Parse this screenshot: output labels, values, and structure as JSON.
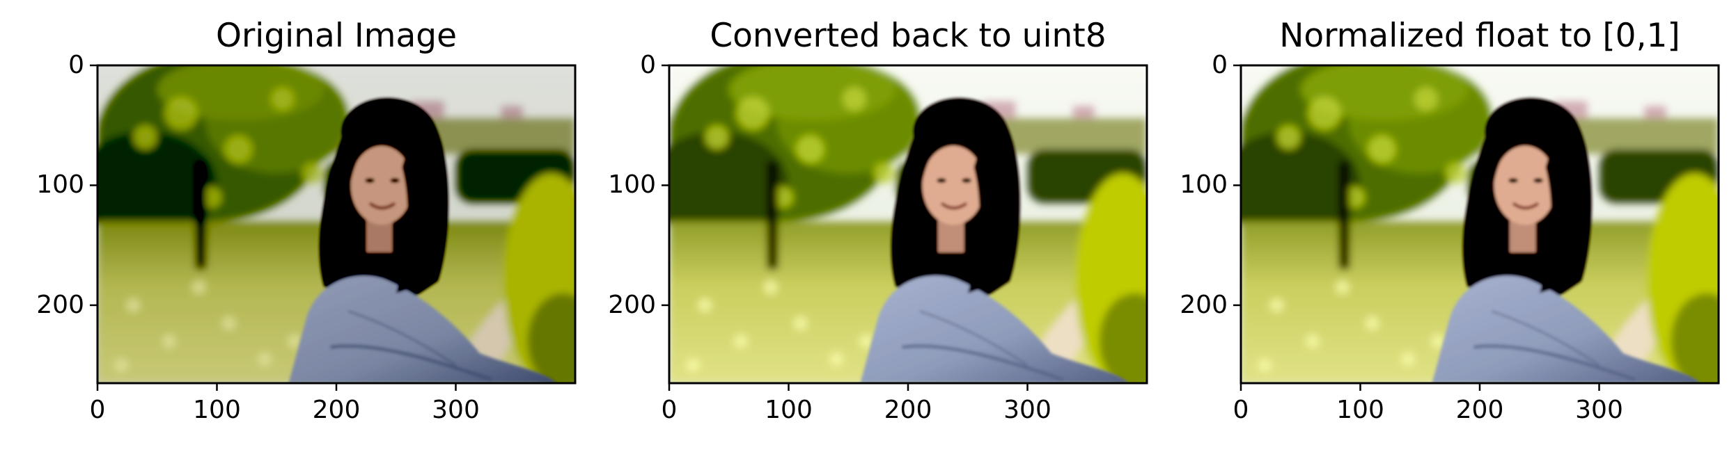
{
  "figure": {
    "panels": [
      {
        "id": "original",
        "title": "Original Image",
        "image": {
          "brightness": 0.82,
          "contrast": 1.12,
          "saturation": 1.0
        },
        "xticks": [
          "0",
          "100",
          "200",
          "300"
        ],
        "yticks": [
          "0",
          "100",
          "200"
        ],
        "xlim": [
          0,
          400
        ],
        "ylim": [
          265,
          0
        ]
      },
      {
        "id": "uint8",
        "title": "Converted back to uint8",
        "image": {
          "brightness": 1.08,
          "contrast": 1.05,
          "saturation": 1.05
        },
        "xticks": [
          "0",
          "100",
          "200",
          "300"
        ],
        "yticks": [
          "0",
          "100",
          "200"
        ],
        "xlim": [
          0,
          400
        ],
        "ylim": [
          265,
          0
        ]
      },
      {
        "id": "normalized",
        "title": "Normalized float to [0,1]",
        "image": {
          "brightness": 1.08,
          "contrast": 1.05,
          "saturation": 1.05
        },
        "xticks": [
          "0",
          "100",
          "200",
          "300"
        ],
        "yticks": [
          "0",
          "100",
          "200"
        ],
        "xlim": [
          0,
          400
        ],
        "ylim": [
          265,
          0
        ]
      }
    ]
  },
  "palette": {
    "sky": "#eef0ea",
    "distant_building": "#c9a9ae",
    "tree_canopy": "#566f24",
    "tree_highlight": "#b9c94d",
    "hedge": "#3d4d25",
    "grass": "#c3c76a",
    "path": "#e3d7be",
    "right_bush": "#b9c43d",
    "hair": "#14110f",
    "skin": "#d6a891",
    "shirt": "#8e99b4",
    "shirt_shadow": "#5b6482"
  }
}
